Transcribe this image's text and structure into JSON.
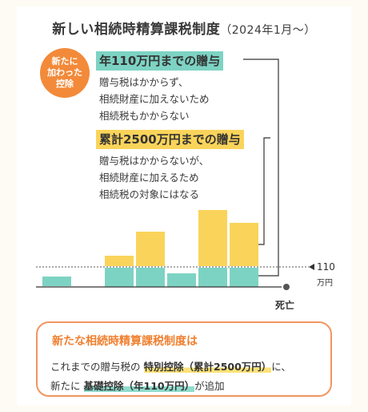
{
  "title": {
    "main": "新しい相続時精算課税制度",
    "sub": "（2024年1月～）"
  },
  "badge": {
    "text": "新たに\n加わった\n控除"
  },
  "basic_deduction": {
    "heading": "年110万円までの贈与",
    "lines": [
      "贈与税はかからず、",
      "相続財産に加えないため",
      "相続税もかからない"
    ]
  },
  "special_deduction": {
    "heading": "累計2500万円までの贈与",
    "lines": [
      "贈与税はかからないが、",
      "相続財産に加えるため",
      "相続税の対象にはなる"
    ]
  },
  "chart": {
    "threshold_value": "110",
    "threshold_unit": "万円",
    "death_label": "死亡",
    "colors": {
      "teal": "#7dd3c3",
      "yellow": "#fad45a",
      "line": "#333333"
    }
  },
  "summary": {
    "title": "新たな相続時精算課税制度は",
    "line1_pre": "これまでの贈与税の",
    "line1_em": "特別控除（累計2500万円）",
    "line1_post": "に、",
    "line2_pre": "新たに",
    "line2_em": "基礎控除（年110万円）",
    "line2_post": "が追加"
  }
}
